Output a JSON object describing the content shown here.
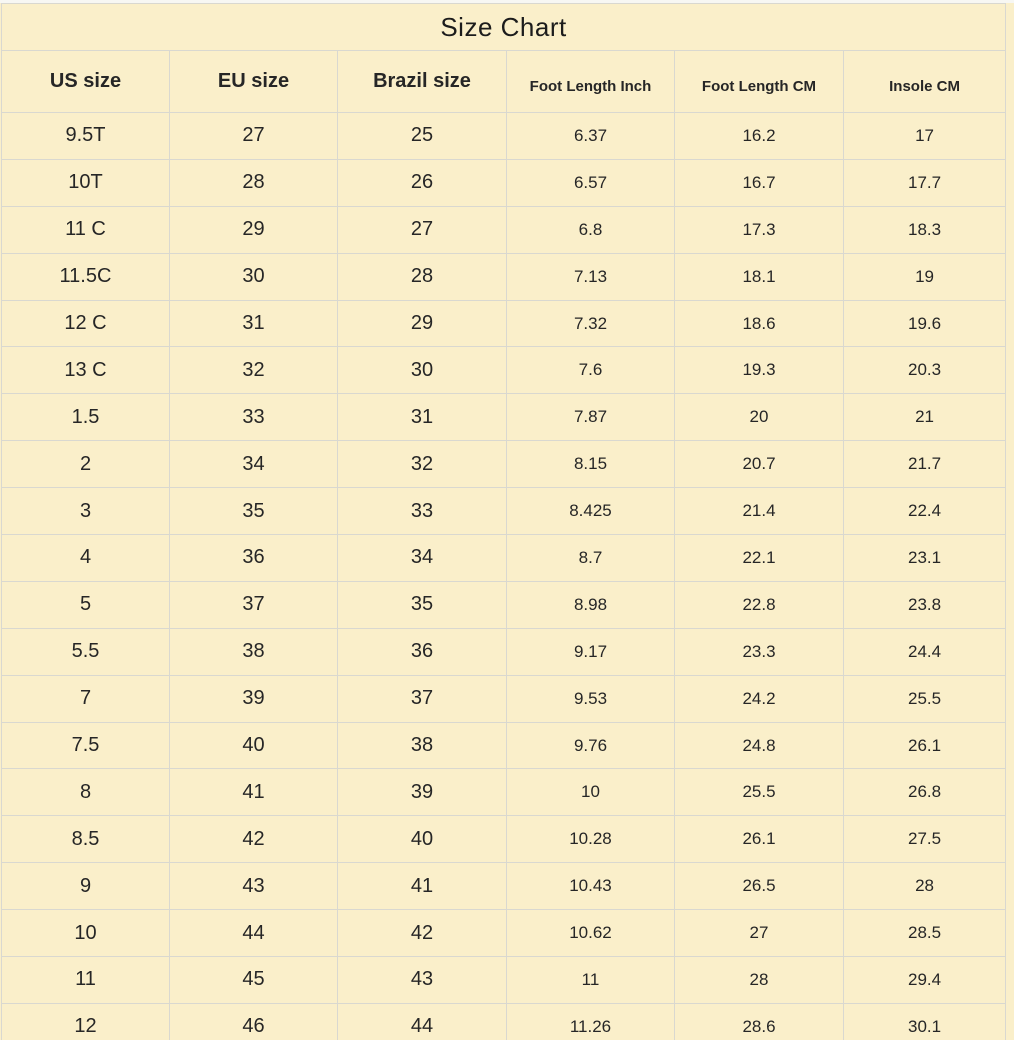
{
  "title": "Size Chart",
  "table": {
    "columns": [
      {
        "label": "US size",
        "style": "large"
      },
      {
        "label": "EU size",
        "style": "large"
      },
      {
        "label": "Brazil size",
        "style": "large"
      },
      {
        "label": "Foot Length Inch",
        "style": "small"
      },
      {
        "label": "Foot Length CM",
        "style": "small"
      },
      {
        "label": "Insole CM",
        "style": "small"
      }
    ],
    "rows": [
      [
        "9.5T",
        "27",
        "25",
        "6.37",
        "16.2",
        "17"
      ],
      [
        "10T",
        "28",
        "26",
        "6.57",
        "16.7",
        "17.7"
      ],
      [
        "11 C",
        "29",
        "27",
        "6.8",
        "17.3",
        "18.3"
      ],
      [
        "11.5C",
        "30",
        "28",
        "7.13",
        "18.1",
        "19"
      ],
      [
        "12 C",
        "31",
        "29",
        "7.32",
        "18.6",
        "19.6"
      ],
      [
        "13 C",
        "32",
        "30",
        "7.6",
        "19.3",
        "20.3"
      ],
      [
        "1.5",
        "33",
        "31",
        "7.87",
        "20",
        "21"
      ],
      [
        "2",
        "34",
        "32",
        "8.15",
        "20.7",
        "21.7"
      ],
      [
        "3",
        "35",
        "33",
        "8.425",
        "21.4",
        "22.4"
      ],
      [
        "4",
        "36",
        "34",
        "8.7",
        "22.1",
        "23.1"
      ],
      [
        "5",
        "37",
        "35",
        "8.98",
        "22.8",
        "23.8"
      ],
      [
        "5.5",
        "38",
        "36",
        "9.17",
        "23.3",
        "24.4"
      ],
      [
        "7",
        "39",
        "37",
        "9.53",
        "24.2",
        "25.5"
      ],
      [
        "7.5",
        "40",
        "38",
        "9.76",
        "24.8",
        "26.1"
      ],
      [
        "8",
        "41",
        "39",
        "10",
        "25.5",
        "26.8"
      ],
      [
        "8.5",
        "42",
        "40",
        "10.28",
        "26.1",
        "27.5"
      ],
      [
        "9",
        "43",
        "41",
        "10.43",
        "26.5",
        "28"
      ],
      [
        "10",
        "44",
        "42",
        "10.62",
        "27",
        "28.5"
      ],
      [
        "11",
        "45",
        "43",
        "11",
        "28",
        "29.4"
      ],
      [
        "12",
        "46",
        "44",
        "11.26",
        "28.6",
        "30.1"
      ]
    ]
  },
  "colors": {
    "background": "#faefca",
    "gridline": "#d9d8d0",
    "text": "#262626"
  }
}
